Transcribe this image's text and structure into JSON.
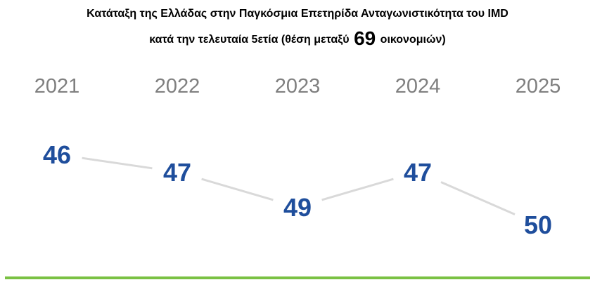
{
  "title": {
    "line1": "Κατάταξη της Ελλάδας στην Παγκόσμια Επετηρίδα Ανταγωνιστικότητα του IMD",
    "line2_before": "κατά την τελευταία 5ετία (θέση μεταξύ",
    "line2_number": "69",
    "line2_after": "οικονομιών)"
  },
  "colors": {
    "rank": "#1f4e9c",
    "year": "#7f7f7f",
    "connector": "#d9d9d9",
    "baseline": "#7ac143"
  },
  "chart_data": {
    "type": "line",
    "categories": [
      "2021",
      "2022",
      "2023",
      "2024",
      "2025"
    ],
    "values": [
      46,
      47,
      49,
      47,
      50
    ],
    "ylim": [
      45,
      51
    ],
    "y_inverted": true,
    "grid": false,
    "legend": "none"
  }
}
